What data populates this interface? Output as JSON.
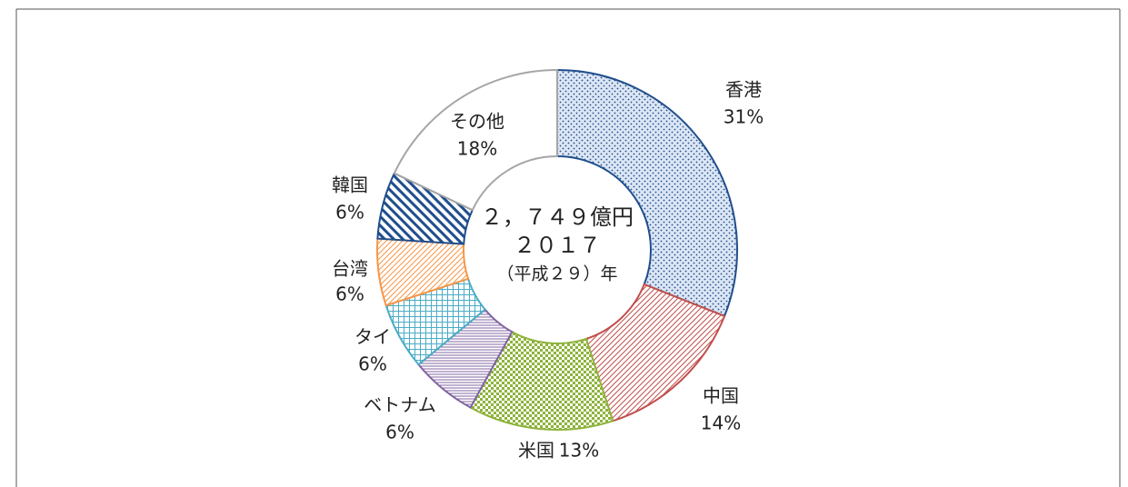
{
  "chart_data": {
    "type": "donut",
    "categories": [
      "香港",
      "中国",
      "米国",
      "ベトナム",
      "タイ",
      "台湾",
      "韓国",
      "その他"
    ],
    "values": [
      31,
      14,
      13,
      6,
      6,
      6,
      6,
      18
    ],
    "value_labels": [
      "31%",
      "14%",
      "13%",
      "6%",
      "6%",
      "6%",
      "6%",
      "18%"
    ],
    "colors": [
      "#1f4e8c",
      "#c0504d",
      "#8db33a",
      "#8064a2",
      "#4bacc6",
      "#f79646",
      "#1f4e8c",
      "#a6a6a6"
    ],
    "patterns": [
      "dots",
      "diag-fine",
      "checker",
      "hlines",
      "grid",
      "diag-fine",
      "diag-wide",
      "none"
    ],
    "center_text": [
      "２，７４９億円",
      "２０１７",
      "（平成２９）年"
    ]
  }
}
